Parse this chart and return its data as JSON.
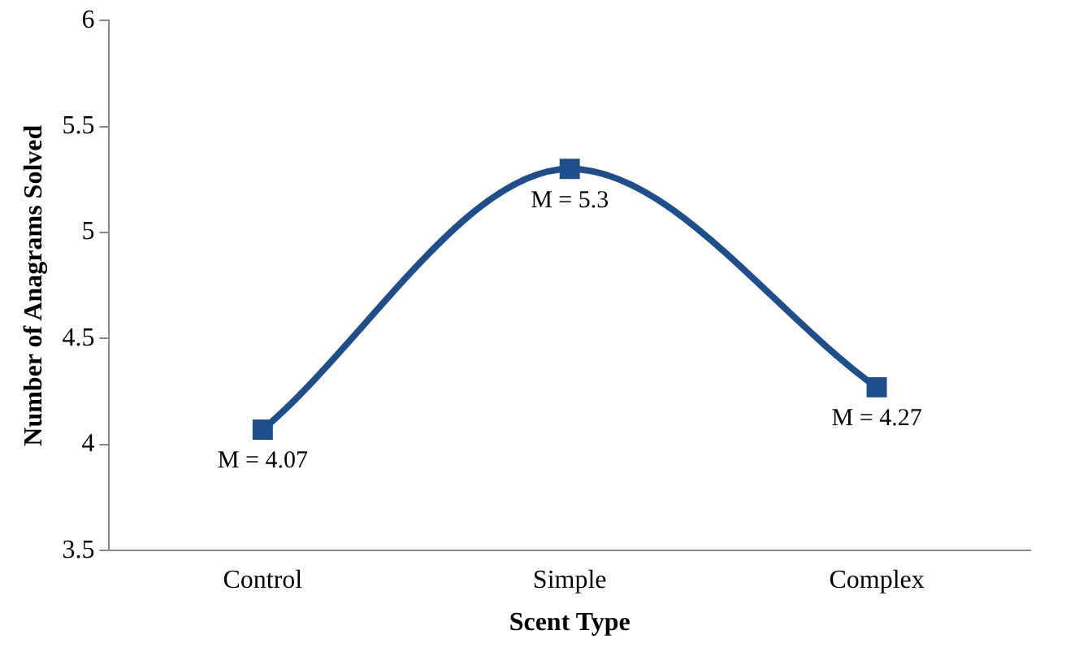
{
  "chart_data": {
    "type": "line",
    "xlabel": "Scent Type",
    "ylabel": "Number of Anagrams Solved",
    "categories": [
      "Control",
      "Simple",
      "Complex"
    ],
    "series": [
      {
        "color": "#1f4e8c",
        "values": [
          4.07,
          5.3,
          4.27
        ],
        "value_labels": [
          "M = 4.07",
          "M = 5.3",
          "M = 4.27"
        ]
      }
    ],
    "ylim": [
      3.5,
      6
    ],
    "yticks": [
      3.5,
      4,
      4.5,
      5,
      5.5,
      6
    ],
    "grid": false,
    "legend": false,
    "marker": "square",
    "line_style": "solid"
  }
}
